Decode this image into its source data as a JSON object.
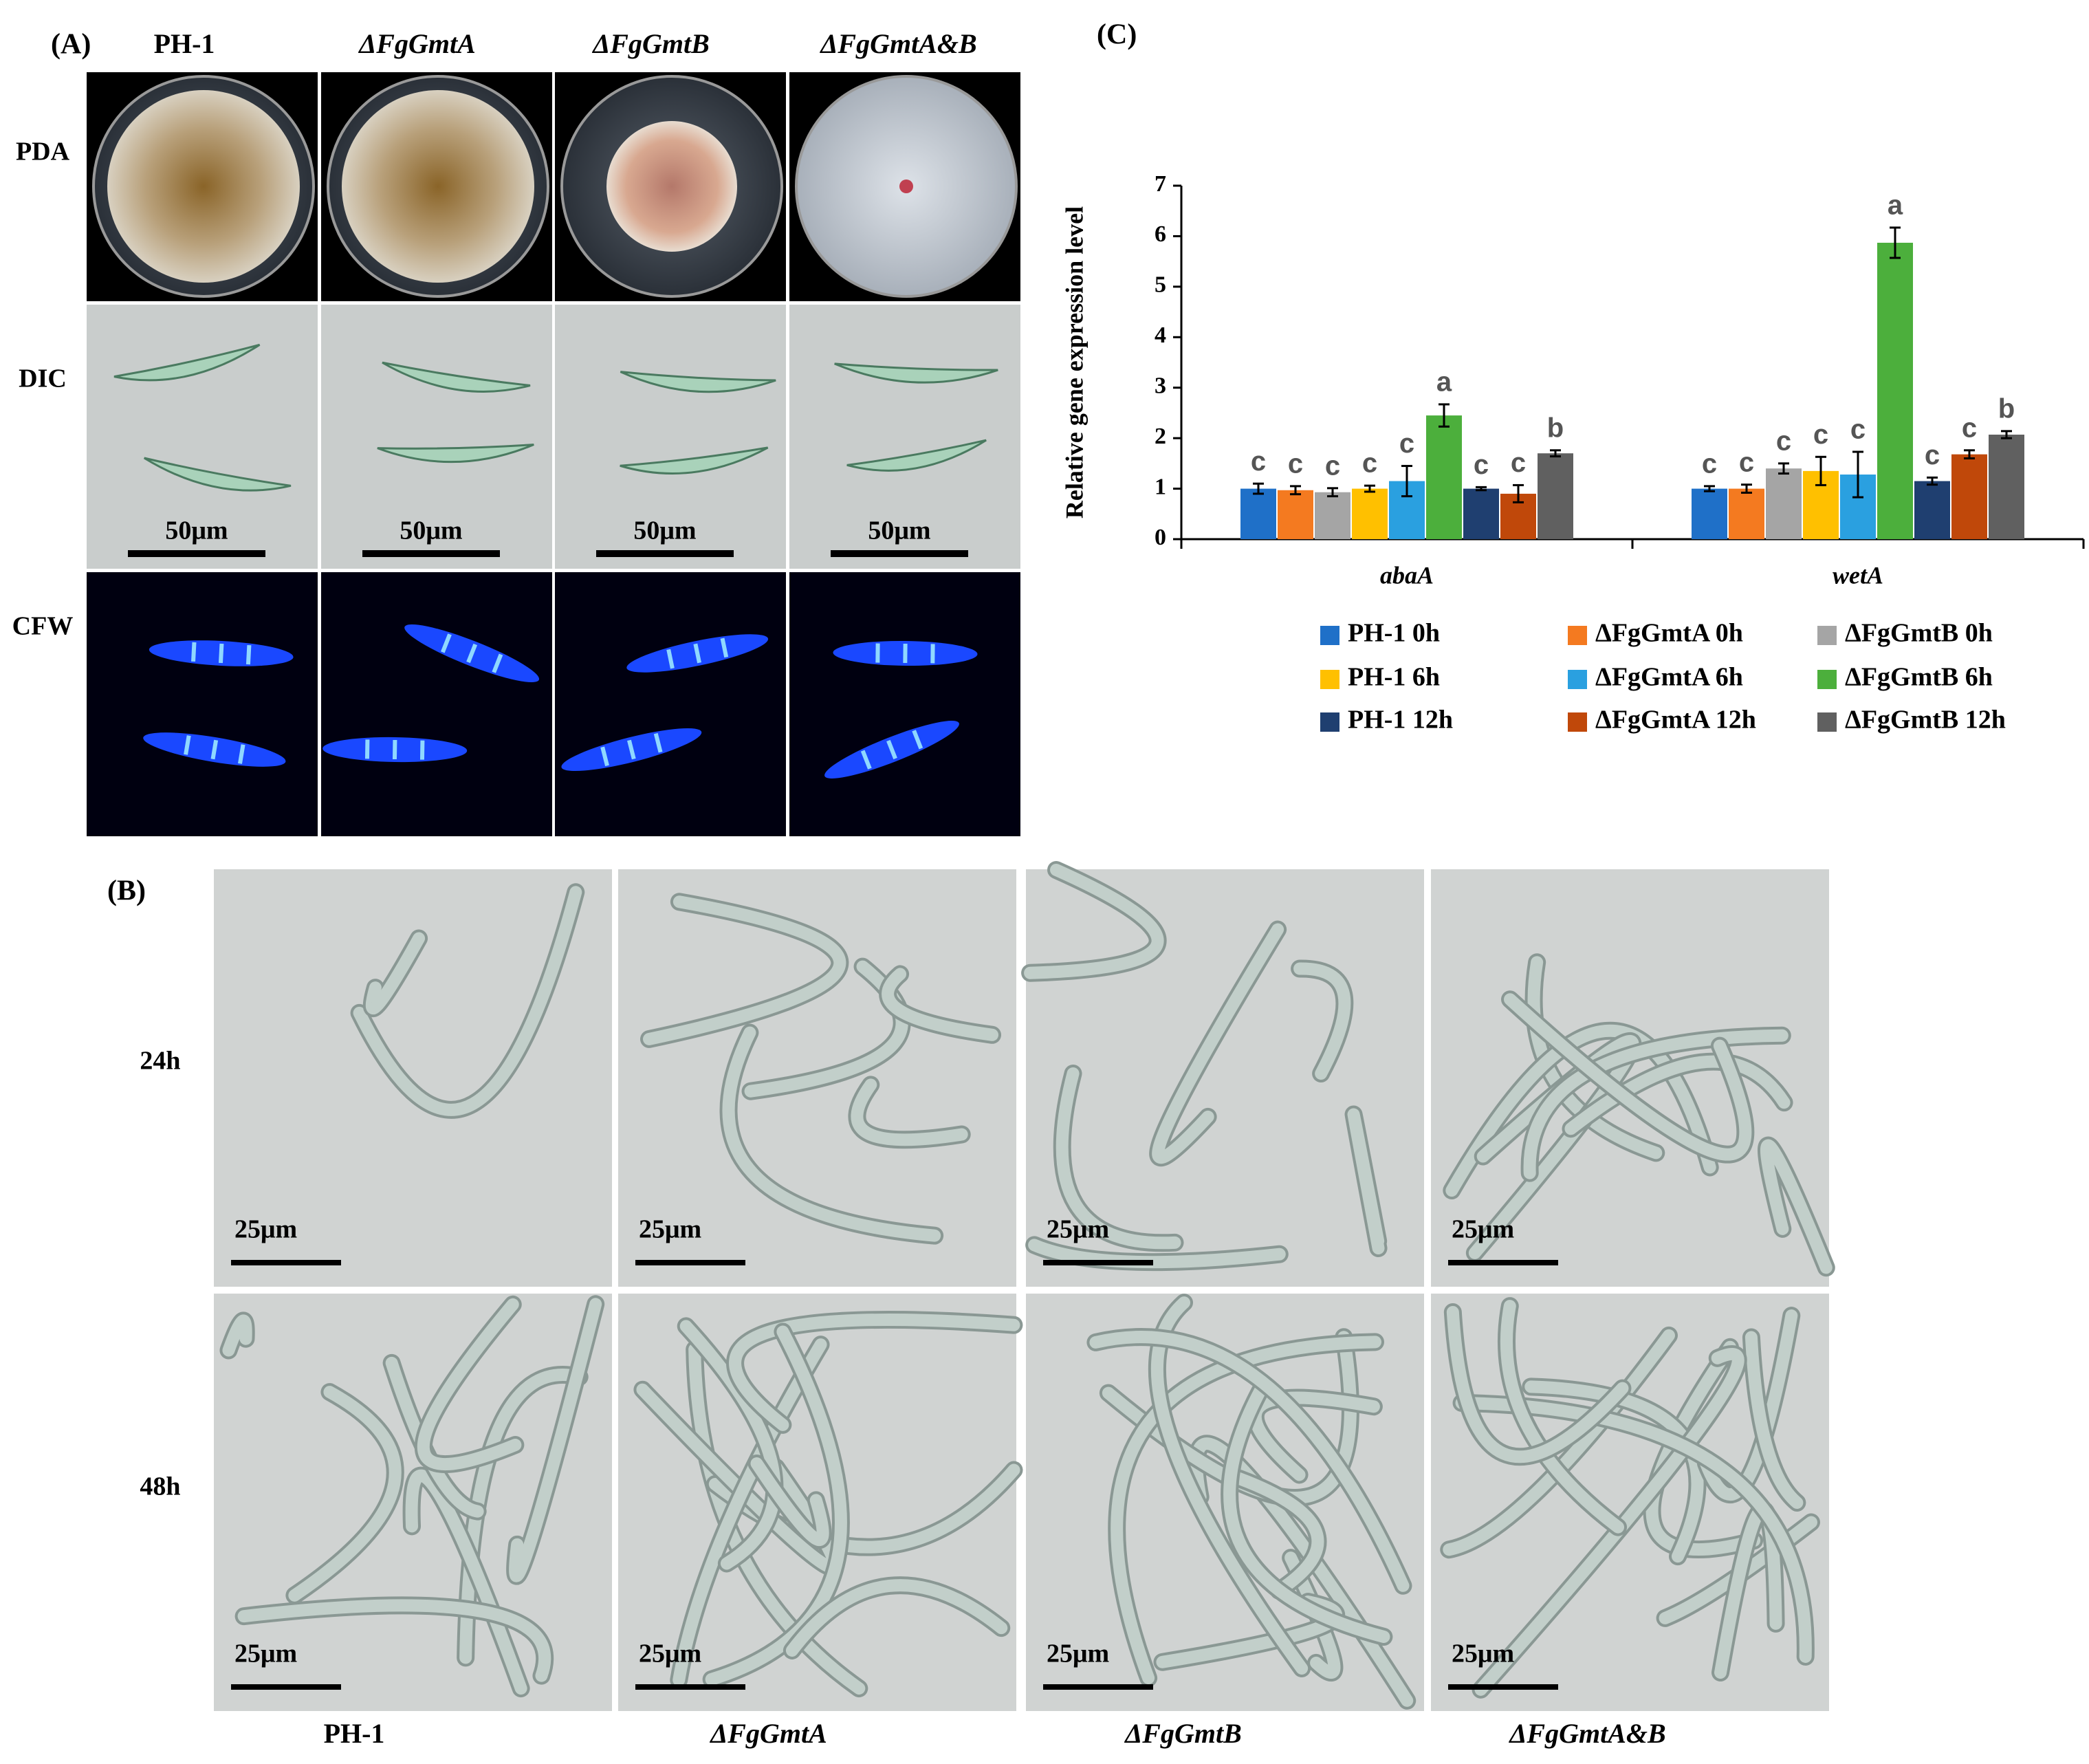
{
  "panel_a": {
    "label": "(A)",
    "columns": [
      "PH-1",
      "ΔFgGmtA",
      "ΔFgGmtB",
      "ΔFgGmtA&B"
    ],
    "rows": [
      "PDA",
      "DIC",
      "CFW"
    ],
    "scale_bar": "50μm"
  },
  "panel_b": {
    "label": "(B)",
    "columns": [
      "PH-1",
      "ΔFgGmtA",
      "ΔFgGmtB",
      "ΔFgGmtA&B"
    ],
    "rows": [
      "24h",
      "48h"
    ],
    "scale_bar": "25μm"
  },
  "chart_data": {
    "type": "bar",
    "panel_label": "(C)",
    "y_label": "Relative gene expression level",
    "categories": [
      "abaA",
      "wetA"
    ],
    "ylim": [
      0,
      7
    ],
    "yticks": [
      0,
      1,
      2,
      3,
      4,
      5,
      6,
      7
    ],
    "series": [
      {
        "name": "PH-1 0h",
        "color": "#1f70c8",
        "values": [
          1.0,
          1.0
        ],
        "errors": [
          0.1,
          0.05
        ],
        "letters": [
          "c",
          "c"
        ]
      },
      {
        "name": "ΔFgGmtA 0h",
        "color": "#f47a20",
        "values": [
          0.97,
          1.0
        ],
        "errors": [
          0.08,
          0.08
        ],
        "letters": [
          "c",
          "c"
        ]
      },
      {
        "name": "ΔFgGmtB 0h",
        "color": "#a5a5a5",
        "values": [
          0.93,
          1.4
        ],
        "errors": [
          0.08,
          0.1
        ],
        "letters": [
          "c",
          "c"
        ]
      },
      {
        "name": "PH-1 6h",
        "color": "#ffc000",
        "values": [
          1.0,
          1.35
        ],
        "errors": [
          0.06,
          0.28
        ],
        "letters": [
          "c",
          "c"
        ]
      },
      {
        "name": "ΔFgGmtA 6h",
        "color": "#2aa0e0",
        "values": [
          1.15,
          1.28
        ],
        "errors": [
          0.3,
          0.45
        ],
        "letters": [
          "c",
          "c"
        ]
      },
      {
        "name": "ΔFgGmtB 6h",
        "color": "#4caf3c",
        "values": [
          2.45,
          5.87
        ],
        "errors": [
          0.22,
          0.3
        ],
        "letters": [
          "a",
          "a"
        ]
      },
      {
        "name": "PH-1 12h",
        "color": "#1f3f70",
        "values": [
          1.0,
          1.15
        ],
        "errors": [
          0.03,
          0.07
        ],
        "letters": [
          "c",
          "c"
        ]
      },
      {
        "name": "ΔFgGmtA 12h",
        "color": "#c0480a",
        "values": [
          0.9,
          1.68
        ],
        "errors": [
          0.17,
          0.08
        ],
        "letters": [
          "c",
          "c"
        ]
      },
      {
        "name": "ΔFgGmtB 12h",
        "color": "#606060",
        "values": [
          1.7,
          2.07
        ],
        "errors": [
          0.06,
          0.07
        ],
        "letters": [
          "b",
          "b"
        ]
      }
    ]
  }
}
